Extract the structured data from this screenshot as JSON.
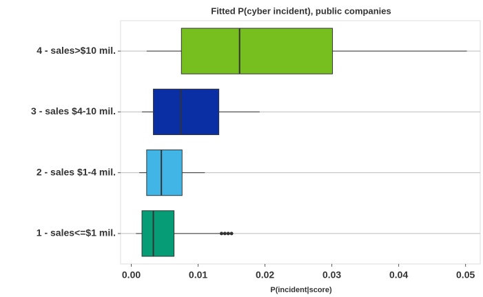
{
  "chart_data": {
    "type": "boxplot",
    "orientation": "horizontal",
    "title": "Fitted P(cyber incident), public companies",
    "x_label": "P(incident|score)",
    "categories": [
      "1 - sales<=$1 mil.",
      "2 - sales $1-4 mil.",
      "3 - sales $4-10 mil.",
      "4 - sales>$10 mil."
    ],
    "series": [
      {
        "name": "1 - sales<=$1 mil.",
        "color": "#069c75",
        "min": 0.0007,
        "q1": 0.0016,
        "median": 0.0033,
        "q3": 0.0064,
        "max": 0.0133,
        "outliers": [
          0.0135,
          0.014,
          0.0145,
          0.015
        ]
      },
      {
        "name": "2 - sales $1-4 mil.",
        "color": "#41b6e6",
        "min": 0.0012,
        "q1": 0.0023,
        "median": 0.0045,
        "q3": 0.0076,
        "max": 0.011,
        "outliers": []
      },
      {
        "name": "3 - sales $4-10 mil.",
        "color": "#0a2ea4",
        "min": 0.0016,
        "q1": 0.0033,
        "median": 0.0074,
        "q3": 0.0131,
        "max": 0.0192,
        "outliers": []
      },
      {
        "name": "4 - sales>$10 mil.",
        "color": "#77bf1f",
        "min": 0.0023,
        "q1": 0.0075,
        "median": 0.0162,
        "q3": 0.0301,
        "max": 0.0502,
        "outliers": []
      }
    ],
    "xlim": [
      -0.0016,
      0.0522
    ],
    "xticks": [
      {
        "value": 0,
        "label": "0.00"
      },
      0.01,
      0.02,
      0.03,
      0.04,
      0.05
    ],
    "grid": true
  }
}
